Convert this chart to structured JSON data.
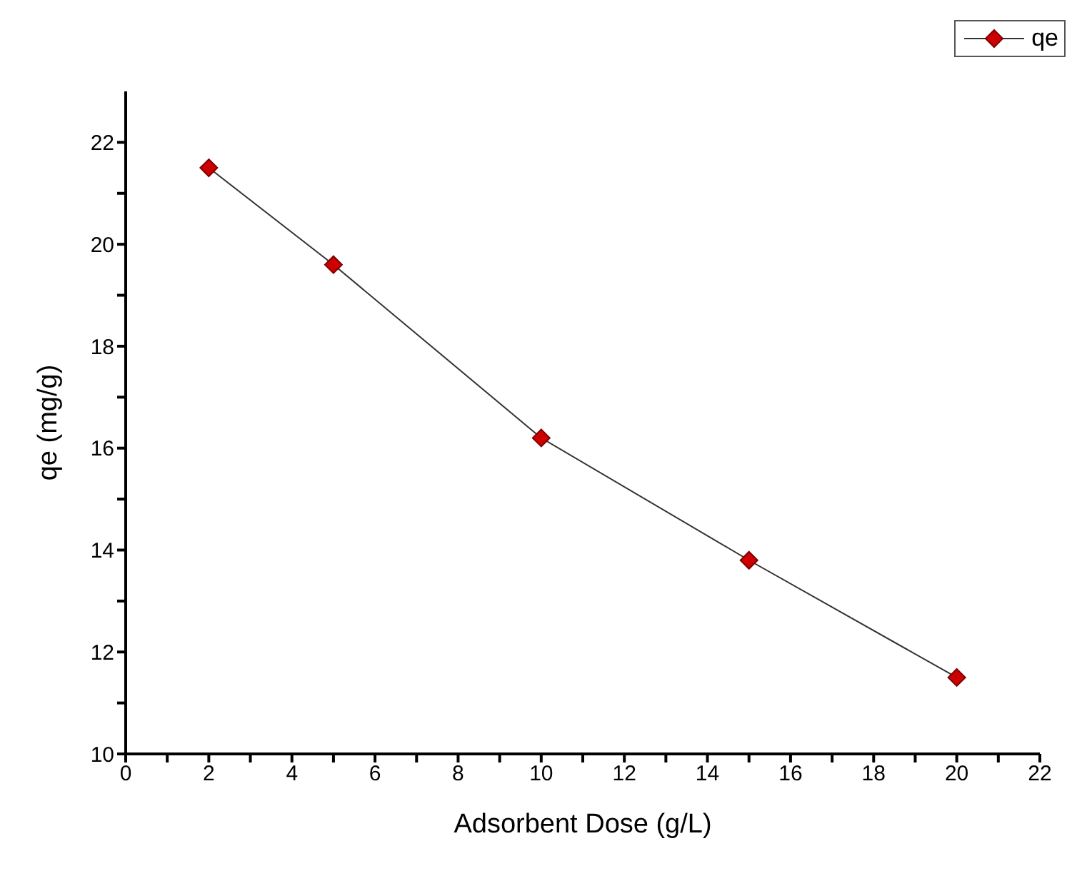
{
  "chart_data": {
    "type": "line",
    "xlabel": "Adsorbent Dose (g/L)",
    "ylabel": "qe (mg/g)",
    "x": [
      2,
      5,
      10,
      15,
      20
    ],
    "series": [
      {
        "name": "qe",
        "color": "#cc0000",
        "values": [
          21.5,
          19.6,
          16.2,
          13.8,
          11.5
        ]
      }
    ],
    "xlim": [
      0,
      22
    ],
    "xticks": [
      0,
      {
        "value": 1,
        "label": null
      },
      2,
      {
        "value": 3,
        "label": null
      },
      4,
      {
        "value": 5,
        "label": null
      },
      6,
      {
        "value": 7,
        "label": null
      },
      8,
      {
        "value": 9,
        "label": null
      },
      10,
      {
        "value": 11,
        "label": null
      },
      12,
      {
        "value": 13,
        "label": null
      },
      14,
      {
        "value": 15,
        "label": null
      },
      16,
      {
        "value": 17,
        "label": null
      },
      18,
      {
        "value": 19,
        "label": null
      },
      20,
      {
        "value": 21,
        "label": null
      },
      22
    ],
    "ylim": [
      10,
      23
    ],
    "yticks": [
      10,
      {
        "value": 11,
        "label": null
      },
      12,
      {
        "value": 13,
        "label": null
      },
      14,
      {
        "value": 15,
        "label": null
      },
      16,
      {
        "value": 17,
        "label": null
      },
      18,
      {
        "value": 19,
        "label": null
      },
      20,
      {
        "value": 21,
        "label": null
      },
      22
    ],
    "legend": "top right",
    "marker": "diamond",
    "line_style": "solid",
    "grid": false
  }
}
